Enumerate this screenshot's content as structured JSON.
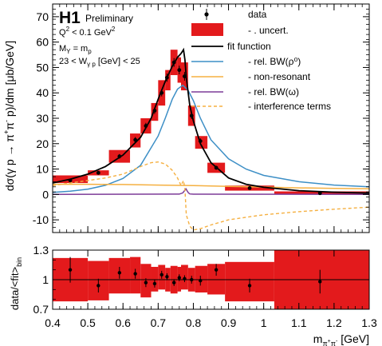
{
  "chart_data": [
    {
      "type": "line",
      "experiment": "H1",
      "status": "Preliminary",
      "cut_lines": [
        "Q",
        "2",
        " < 0.1 GeV",
        "2",
        "M",
        "Y",
        " = m",
        "p",
        "23 < W",
        "γ p",
        " [GeV] < 25"
      ],
      "ylabel_parts": [
        "dσ(γ p  →  π",
        "+",
        "π",
        "-",
        " p)/dm [μb/GeV]"
      ],
      "xlim": [
        0.4,
        1.3
      ],
      "ylim": [
        -15,
        75
      ],
      "yticks": [
        -10,
        0,
        10,
        20,
        30,
        40,
        50,
        60,
        70
      ],
      "legend": {
        "placement": "top-right",
        "entries": [
          {
            "label": "data",
            "style": "marker",
            "color": "#000000"
          },
          {
            "label": "- . uncert.",
            "style": "box",
            "color": "#e31a1c"
          },
          {
            "label": "fit function",
            "style": "line",
            "color": "#000000"
          },
          {
            "label": "- rel. BW(ρ⁰)",
            "style": "line",
            "color": "#3d8fc6"
          },
          {
            "label": "- non-resonant",
            "style": "line",
            "color": "#f5b041"
          },
          {
            "label": "- rel. BW(ω)",
            "style": "line",
            "color": "#7d3c98"
          },
          {
            "label": "- interference terms",
            "style": "dashed",
            "color": "#f5b041"
          }
        ]
      },
      "data_points": [
        {
          "x": 0.45,
          "y": 5.5,
          "err": 0.6,
          "xlo": 0.4,
          "xhi": 0.5,
          "ulo": 4.5,
          "uhi": 7.5
        },
        {
          "x": 0.53,
          "y": 8.5,
          "err": 0.7,
          "xlo": 0.5,
          "xhi": 0.56,
          "ulo": 7.5,
          "uhi": 9.5
        },
        {
          "x": 0.59,
          "y": 15,
          "err": 0.9,
          "xlo": 0.56,
          "xhi": 0.62,
          "ulo": 12.5,
          "uhi": 17.5
        },
        {
          "x": 0.635,
          "y": 21.5,
          "err": 1.1,
          "xlo": 0.62,
          "xhi": 0.65,
          "ulo": 18.5,
          "uhi": 24
        },
        {
          "x": 0.665,
          "y": 27,
          "err": 1.2,
          "xlo": 0.65,
          "xhi": 0.68,
          "ulo": 24,
          "uhi": 30
        },
        {
          "x": 0.69,
          "y": 33,
          "err": 1.3,
          "xlo": 0.68,
          "xhi": 0.7,
          "ulo": 29,
          "uhi": 36
        },
        {
          "x": 0.71,
          "y": 40,
          "err": 1.4,
          "xlo": 0.7,
          "xhi": 0.72,
          "ulo": 35,
          "uhi": 45
        },
        {
          "x": 0.725,
          "y": 46,
          "err": 1.6,
          "xlo": 0.72,
          "xhi": 0.735,
          "ulo": 41,
          "uhi": 49
        },
        {
          "x": 0.745,
          "y": 52,
          "err": 1.7,
          "xlo": 0.735,
          "xhi": 0.755,
          "ulo": 47,
          "uhi": 57
        },
        {
          "x": 0.76,
          "y": 49,
          "err": 1.7,
          "xlo": 0.755,
          "xhi": 0.765,
          "ulo": 44,
          "uhi": 54
        },
        {
          "x": 0.775,
          "y": 46.5,
          "err": 1.7,
          "xlo": 0.765,
          "xhi": 0.785,
          "ulo": 41,
          "uhi": 52
        },
        {
          "x": 0.795,
          "y": 31,
          "err": 1.3,
          "xlo": 0.785,
          "xhi": 0.805,
          "ulo": 27,
          "uhi": 35
        },
        {
          "x": 0.82,
          "y": 21,
          "err": 1.1,
          "xlo": 0.805,
          "xhi": 0.84,
          "ulo": 18,
          "uhi": 23
        },
        {
          "x": 0.865,
          "y": 10.5,
          "err": 0.8,
          "xlo": 0.84,
          "xhi": 0.89,
          "ulo": 8.5,
          "uhi": 12.5
        },
        {
          "x": 0.96,
          "y": 2.5,
          "err": 0.4,
          "xlo": 0.89,
          "xhi": 1.03,
          "ulo": 1.5,
          "uhi": 3.5
        },
        {
          "x": 1.16,
          "y": 0.5,
          "err": 0.15,
          "xlo": 1.03,
          "xhi": 1.3,
          "ulo": 0,
          "uhi": 1.2
        }
      ],
      "curves": {
        "fit_function": {
          "x": [
            0.4,
            0.45,
            0.5,
            0.55,
            0.6,
            0.65,
            0.68,
            0.7,
            0.72,
            0.74,
            0.755,
            0.765,
            0.772,
            0.776,
            0.78,
            0.79,
            0.8,
            0.82,
            0.85,
            0.9,
            0.95,
            1.0,
            1.1,
            1.2,
            1.3
          ],
          "y": [
            4.5,
            6,
            8,
            11,
            15.5,
            22.5,
            30,
            37.5,
            44.5,
            50.5,
            54,
            55.5,
            57,
            53,
            46,
            35,
            29,
            20,
            12.5,
            6.5,
            4,
            2.8,
            1.5,
            0.9,
            0.5
          ]
        },
        "rel_bw_rho": {
          "x": [
            0.4,
            0.45,
            0.5,
            0.55,
            0.6,
            0.65,
            0.7,
            0.72,
            0.74,
            0.755,
            0.77,
            0.785,
            0.8,
            0.82,
            0.85,
            0.9,
            0.95,
            1.0,
            1.1,
            1.2,
            1.3
          ],
          "y": [
            0.8,
            1.3,
            2.1,
            3.6,
            6.3,
            11.5,
            23,
            30,
            37.5,
            41.5,
            43,
            41,
            37,
            30,
            21.5,
            14,
            10,
            7.5,
            5,
            3.7,
            3
          ]
        },
        "non_resonant": {
          "x": [
            0.4,
            0.5,
            0.6,
            0.7,
            0.8,
            0.9,
            1.0,
            1.1,
            1.2,
            1.3
          ],
          "y": [
            4,
            4,
            3.9,
            3.7,
            3.5,
            3.2,
            2.9,
            2.6,
            2.4,
            2.2
          ]
        },
        "rel_bw_omega": {
          "x": [
            0.4,
            0.76,
            0.77,
            0.775,
            0.779,
            0.782,
            0.786,
            0.79,
            0.8,
            1.3
          ],
          "y": [
            0.05,
            0.15,
            0.6,
            1.5,
            2.2,
            1.5,
            0.6,
            0.2,
            0.1,
            0.05
          ]
        },
        "interference": {
          "x": [
            0.4,
            0.45,
            0.5,
            0.55,
            0.6,
            0.65,
            0.68,
            0.7,
            0.72,
            0.74,
            0.755,
            0.765,
            0.772,
            0.776,
            0.78,
            0.79,
            0.8,
            0.82,
            0.85,
            0.9,
            0.95,
            1.0,
            1.1,
            1.2,
            1.3
          ],
          "y": [
            3.5,
            4.5,
            5.5,
            6.5,
            8,
            11,
            12.5,
            12.8,
            12,
            9.5,
            6.5,
            3.5,
            5.5,
            2,
            -8,
            -12.5,
            -14,
            -13.5,
            -12,
            -10,
            -9,
            -8,
            -6.8,
            -5.8,
            -5
          ]
        }
      }
    },
    {
      "type": "scatter",
      "ylabel_parts": [
        "data/<fit>",
        "bin"
      ],
      "xlabel_parts": [
        "m",
        "π",
        "+",
        "π",
        "-",
        " [GeV]"
      ],
      "xlim": [
        0.4,
        1.3
      ],
      "xticks": [
        0.4,
        0.5,
        0.6,
        0.7,
        0.8,
        0.9,
        1,
        1.1,
        1.2,
        1.3
      ],
      "ylim": [
        0.7,
        1.3
      ],
      "yticks": [
        0.7,
        1,
        1.3
      ],
      "reference_line": 1,
      "ratio_points": [
        {
          "x": 0.45,
          "y": 1.1,
          "err": 0.13
        },
        {
          "x": 0.53,
          "y": 0.94,
          "err": 0.07
        },
        {
          "x": 0.59,
          "y": 1.07,
          "err": 0.06
        },
        {
          "x": 0.635,
          "y": 1.06,
          "err": 0.05
        },
        {
          "x": 0.665,
          "y": 0.97,
          "err": 0.045
        },
        {
          "x": 0.69,
          "y": 0.96,
          "err": 0.04
        },
        {
          "x": 0.71,
          "y": 1.05,
          "err": 0.04
        },
        {
          "x": 0.725,
          "y": 1.03,
          "err": 0.035
        },
        {
          "x": 0.745,
          "y": 0.97,
          "err": 0.035
        },
        {
          "x": 0.76,
          "y": 1.02,
          "err": 0.035
        },
        {
          "x": 0.775,
          "y": 1.01,
          "err": 0.035
        },
        {
          "x": 0.795,
          "y": 1.0,
          "err": 0.04
        },
        {
          "x": 0.82,
          "y": 0.99,
          "err": 0.05
        },
        {
          "x": 0.865,
          "y": 1.1,
          "err": 0.06
        },
        {
          "x": 0.96,
          "y": 0.94,
          "err": 0.07
        },
        {
          "x": 1.16,
          "y": 0.98,
          "err": 0.12
        }
      ],
      "uncertainty_band": [
        {
          "xlo": 0.4,
          "xhi": 0.5,
          "ylo": 0.78,
          "yhi": 1.22
        },
        {
          "xlo": 0.5,
          "xhi": 0.56,
          "ylo": 0.79,
          "yhi": 1.19
        },
        {
          "xlo": 0.56,
          "xhi": 0.62,
          "ylo": 0.86,
          "yhi": 1.22
        },
        {
          "xlo": 0.62,
          "xhi": 0.65,
          "ylo": 0.86,
          "yhi": 1.23
        },
        {
          "xlo": 0.65,
          "xhi": 0.68,
          "ylo": 0.82,
          "yhi": 1.16
        },
        {
          "xlo": 0.68,
          "xhi": 0.7,
          "ylo": 0.88,
          "yhi": 1.13
        },
        {
          "xlo": 0.7,
          "xhi": 0.72,
          "ylo": 0.9,
          "yhi": 1.15
        },
        {
          "xlo": 0.72,
          "xhi": 0.735,
          "ylo": 0.88,
          "yhi": 1.12
        },
        {
          "xlo": 0.735,
          "xhi": 0.755,
          "ylo": 0.86,
          "yhi": 1.14
        },
        {
          "xlo": 0.755,
          "xhi": 0.765,
          "ylo": 0.88,
          "yhi": 1.13
        },
        {
          "xlo": 0.765,
          "xhi": 0.785,
          "ylo": 0.9,
          "yhi": 1.15
        },
        {
          "xlo": 0.785,
          "xhi": 0.805,
          "ylo": 0.88,
          "yhi": 1.12
        },
        {
          "xlo": 0.805,
          "xhi": 0.84,
          "ylo": 0.87,
          "yhi": 1.14
        },
        {
          "xlo": 0.84,
          "xhi": 0.89,
          "ylo": 0.85,
          "yhi": 1.16
        },
        {
          "xlo": 0.89,
          "xhi": 1.03,
          "ylo": 0.78,
          "yhi": 1.18
        },
        {
          "xlo": 1.03,
          "xhi": 1.3,
          "ylo": 0.7,
          "yhi": 1.3
        }
      ]
    }
  ]
}
